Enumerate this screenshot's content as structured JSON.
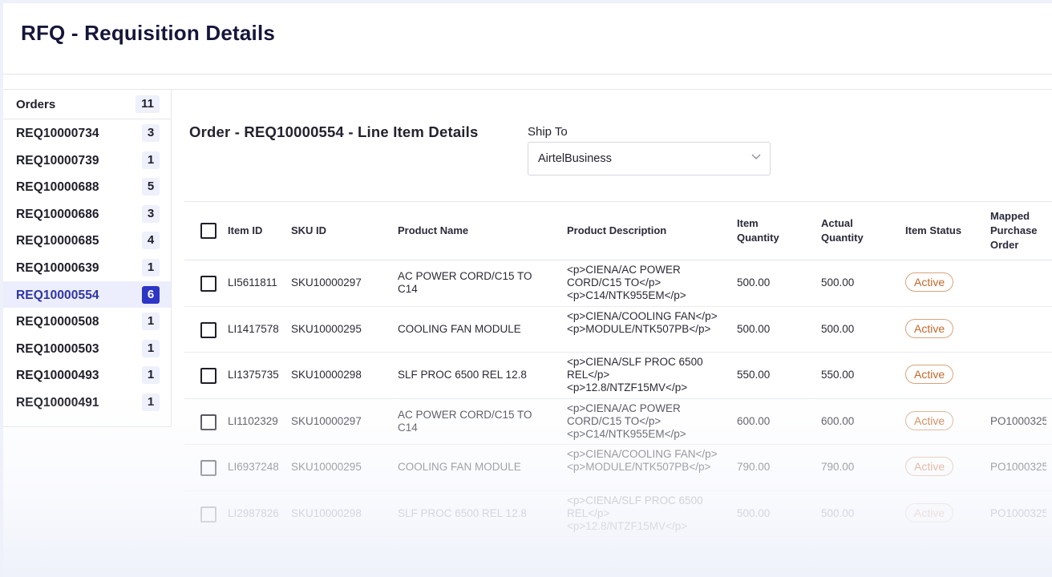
{
  "page": {
    "title": "RFQ - Requisition Details"
  },
  "sidebar": {
    "header": {
      "label": "Orders",
      "count": "11"
    },
    "items": [
      {
        "label": "REQ10000734",
        "count": "3"
      },
      {
        "label": "REQ10000739",
        "count": "1"
      },
      {
        "label": "REQ10000688",
        "count": "5"
      },
      {
        "label": "REQ10000686",
        "count": "3"
      },
      {
        "label": "REQ10000685",
        "count": "4"
      },
      {
        "label": "REQ10000639",
        "count": "1"
      },
      {
        "label": "REQ10000554",
        "count": "6",
        "active": true
      },
      {
        "label": "REQ10000508",
        "count": "1"
      },
      {
        "label": "REQ10000503",
        "count": "1"
      },
      {
        "label": "REQ10000493",
        "count": "1"
      },
      {
        "label": "REQ10000491",
        "count": "1"
      }
    ]
  },
  "main": {
    "title": "Order - REQ10000554 - Line Item Details",
    "ship_to": {
      "label": "Ship To",
      "value": "AirtelBusiness",
      "icon": "chevron-down-icon"
    }
  },
  "table": {
    "columns": [
      "Item ID",
      "SKU ID",
      "Product Name",
      "Product Description",
      "Item Quantity",
      "Actual Quantity",
      "Item Status",
      "Mapped Purchase Order"
    ],
    "rows": [
      {
        "item_id": "LI5611811",
        "sku": "SKU10000297",
        "name": "AC POWER CORD/C15 TO C14",
        "desc": "<p>CIENA/AC POWER CORD/C15 TO</p> <p>C14/NTK955EM</p>",
        "qty": "500.00",
        "actual": "500.00",
        "status": "Active",
        "po": ""
      },
      {
        "item_id": "LI1417578",
        "sku": "SKU10000295",
        "name": "COOLING FAN MODULE",
        "desc": "<p>CIENA/COOLING FAN</p> <p>MODULE/NTK507PB</p>",
        "qty": "500.00",
        "actual": "500.00",
        "status": "Active",
        "po": ""
      },
      {
        "item_id": "LI1375735",
        "sku": "SKU10000298",
        "name": "SLF PROC 6500 REL 12.8",
        "desc": "<p>CIENA/SLF PROC 6500 REL</p> <p>12.8/NTZF15MV</p>",
        "qty": "550.00",
        "actual": "550.00",
        "status": "Active",
        "po": ""
      },
      {
        "item_id": "LI1102329",
        "sku": "SKU10000297",
        "name": "AC POWER CORD/C15 TO C14",
        "desc": "<p>CIENA/AC POWER CORD/C15 TO</p> <p>C14/NTK955EM</p>",
        "qty": "600.00",
        "actual": "600.00",
        "status": "Active",
        "po": "PO1000325"
      },
      {
        "item_id": "LI6937248",
        "sku": "SKU10000295",
        "name": "COOLING FAN MODULE",
        "desc": "<p>CIENA/COOLING FAN</p> <p>MODULE/NTK507PB</p>",
        "qty": "790.00",
        "actual": "790.00",
        "status": "Active",
        "po": "PO1000325"
      },
      {
        "item_id": "LI2987826",
        "sku": "SKU10000298",
        "name": "SLF PROC 6500 REL 12.8",
        "desc": "<p>CIENA/SLF PROC 6500 REL</p> <p>12.8/NTZF15MV</p>",
        "qty": "500.00",
        "actual": "500.00",
        "status": "Active",
        "po": "PO1000325"
      }
    ]
  },
  "colors": {
    "accent": "#2d35c4",
    "status_active": "#c1692b",
    "title": "#16163a"
  }
}
